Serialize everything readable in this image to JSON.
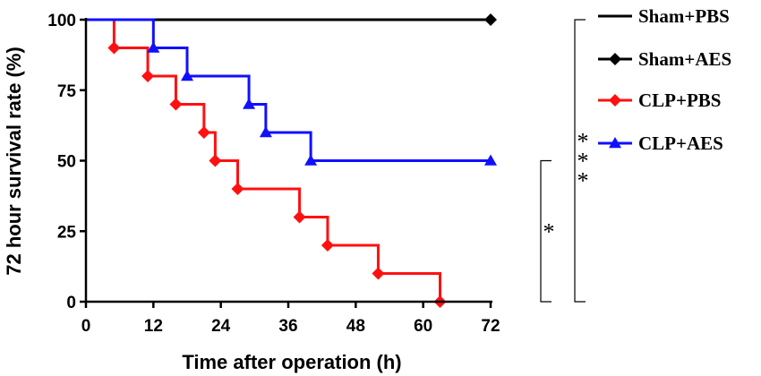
{
  "chart_data": {
    "type": "line",
    "step": true,
    "xlabel": "Time after operation (h)",
    "ylabel": "72 hour survival rate (%)",
    "xlim": [
      0,
      72
    ],
    "ylim": [
      0,
      100
    ],
    "xticks": [
      0,
      12,
      24,
      36,
      48,
      60,
      72
    ],
    "yticks": [
      0,
      25,
      50,
      75,
      100
    ],
    "xtick_labels": [
      "0",
      "12",
      "24",
      "36",
      "48",
      "60",
      "72"
    ],
    "ytick_labels": [
      "0",
      "25",
      "50",
      "75",
      "100"
    ],
    "grid": false,
    "legend_position": "right",
    "series": [
      {
        "name": "Sham+PBS",
        "color": "#000000",
        "marker": "none",
        "x": [
          0,
          72
        ],
        "y": [
          100,
          100
        ]
      },
      {
        "name": "Sham+AES",
        "color": "#000000",
        "marker": "diamond",
        "x": [
          0,
          72
        ],
        "y": [
          100,
          100
        ],
        "marker_x": [
          72
        ],
        "marker_y": [
          100
        ]
      },
      {
        "name": "CLP+PBS",
        "color": "#ff1010",
        "marker": "diamond",
        "x": [
          0,
          5,
          11,
          16,
          21,
          23,
          27,
          38,
          43,
          52,
          63
        ],
        "y": [
          100,
          90,
          80,
          70,
          60,
          50,
          40,
          30,
          20,
          10,
          0
        ],
        "marker_x": [
          5,
          11,
          16,
          21,
          23,
          27,
          38,
          43,
          52,
          63
        ],
        "marker_y": [
          90,
          80,
          70,
          60,
          50,
          40,
          30,
          20,
          10,
          0
        ]
      },
      {
        "name": "CLP+AES",
        "color": "#1010ff",
        "marker": "triangle",
        "x": [
          0,
          12,
          18,
          29,
          32,
          40,
          72
        ],
        "y": [
          100,
          90,
          80,
          70,
          60,
          50,
          50
        ],
        "marker_x": [
          12,
          18,
          29,
          32,
          40,
          72
        ],
        "marker_y": [
          90,
          80,
          70,
          60,
          50,
          50
        ]
      }
    ],
    "annotations": [
      {
        "label": "*",
        "from": 50,
        "to": 0
      },
      {
        "label": "***",
        "from": 100,
        "to": 0
      }
    ]
  }
}
